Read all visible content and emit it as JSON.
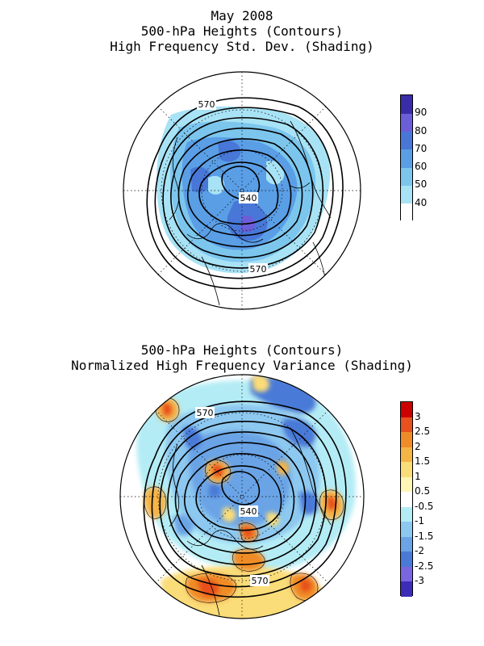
{
  "top_panel": {
    "title_lines": [
      "May 2008",
      "500-hPa Heights (Contours)",
      "High Frequency Std. Dev. (Shading)"
    ],
    "contour_labels": [
      "570",
      "540",
      "570"
    ],
    "colorbar": {
      "ticks": [
        "90",
        "80",
        "70",
        "60",
        "50",
        "40"
      ],
      "colors": [
        "#ffffff",
        "#a8e2f5",
        "#7cc6ee",
        "#5a9ee6",
        "#4877d8",
        "#6c5ed8",
        "#3a2ba8"
      ]
    }
  },
  "bottom_panel": {
    "title_lines": [
      "500-hPa Heights (Contours)",
      "Normalized High Frequency Variance (Shading)"
    ],
    "contour_labels": [
      "570",
      "540",
      "570"
    ],
    "colorbar": {
      "ticks": [
        "3",
        "2.5",
        "2",
        "1.5",
        "1",
        "0.5",
        "-0.5",
        "-1",
        "-1.5",
        "-2",
        "-2.5",
        "-3"
      ],
      "colors": [
        "#cc0000",
        "#e8501e",
        "#f08c28",
        "#f5b446",
        "#fadc78",
        "#fff5b4",
        "#ffffff",
        "#b4ecf5",
        "#8cc8f0",
        "#6aa4e6",
        "#4a7ad8",
        "#7a66e0",
        "#3c2cb8"
      ]
    }
  }
}
